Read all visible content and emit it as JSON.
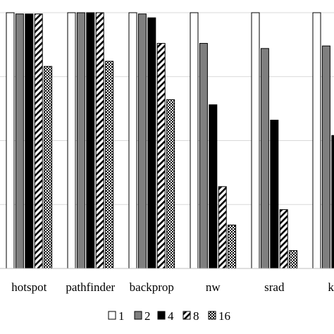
{
  "chart_data": {
    "type": "bar",
    "title": "",
    "xlabel": "",
    "ylabel": "",
    "ylim": [
      0,
      1.0
    ],
    "grid": true,
    "legend_position": "bottom",
    "categories": [
      "hotspot",
      "pathfinder",
      "backprop",
      "nw",
      "srad",
      "kmeans"
    ],
    "category_labels": [
      "hotspot",
      "pathfinder",
      "backprop",
      "nw",
      "srad",
      "km"
    ],
    "series": [
      {
        "name": "1",
        "pattern": "white",
        "values": [
          1.0,
          1.0,
          1.0,
          1.0,
          1.0,
          1.0
        ]
      },
      {
        "name": "2",
        "pattern": "gray",
        "values": [
          0.995,
          1.0,
          0.995,
          0.88,
          0.86,
          0.87
        ]
      },
      {
        "name": "4",
        "pattern": "black",
        "values": [
          0.995,
          1.0,
          0.98,
          0.64,
          0.58,
          0.52
        ]
      },
      {
        "name": "8",
        "pattern": "diagonal",
        "values": [
          0.995,
          1.0,
          0.88,
          0.32,
          0.23,
          0.0
        ]
      },
      {
        "name": "16",
        "pattern": "checker",
        "values": [
          0.79,
          0.81,
          0.66,
          0.17,
          0.07,
          0.0
        ]
      }
    ]
  },
  "colors": {
    "white": "#ffffff",
    "gray": "#7f7f7f",
    "black": "#000000",
    "grid": "#d9d9d9",
    "axis": "#bfbfbf"
  }
}
